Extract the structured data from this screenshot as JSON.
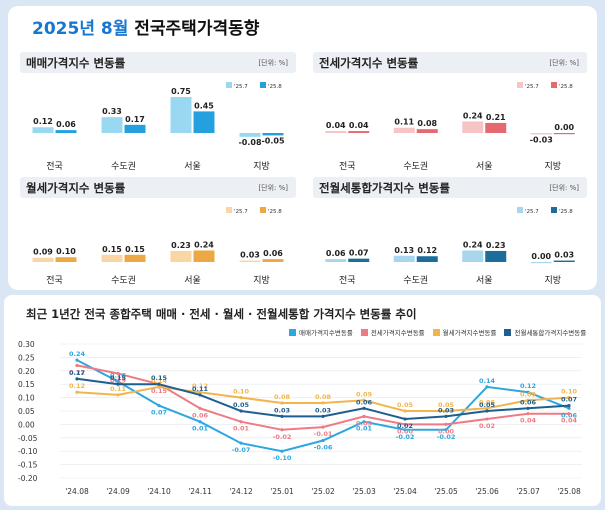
{
  "title": {
    "accent": "2025년 8월",
    "rest": " 전국주택가격동향"
  },
  "unit_label": "[단위: %]",
  "chart_data": [
    {
      "type": "bar",
      "title": "매매가격지수 변동률",
      "categories": [
        "전국",
        "수도권",
        "서울",
        "지방"
      ],
      "series": [
        {
          "name": "'25.7",
          "values": [
            0.12,
            0.33,
            0.75,
            -0.08
          ],
          "color": "#9ad8f2"
        },
        {
          "name": "'25.8",
          "values": [
            0.06,
            0.17,
            0.45,
            -0.05
          ],
          "color": "#23a0dd"
        }
      ],
      "ylim": [
        -0.1,
        0.8
      ]
    },
    {
      "type": "bar",
      "title": "전세가격지수 변동률",
      "categories": [
        "전국",
        "수도권",
        "서울",
        "지방"
      ],
      "series": [
        {
          "name": "'25.7",
          "values": [
            0.04,
            0.11,
            0.24,
            -0.03
          ],
          "color": "#f6c4c6"
        },
        {
          "name": "'25.8",
          "values": [
            0.04,
            0.08,
            0.21,
            0.0
          ],
          "color": "#e56a70"
        }
      ],
      "ylim": [
        -0.1,
        0.8
      ]
    },
    {
      "type": "bar",
      "title": "월세가격지수 변동률",
      "categories": [
        "전국",
        "수도권",
        "서울",
        "지방"
      ],
      "series": [
        {
          "name": "'25.7",
          "values": [
            0.09,
            0.15,
            0.23,
            0.03
          ],
          "color": "#f9d6a4"
        },
        {
          "name": "'25.8",
          "values": [
            0.1,
            0.15,
            0.24,
            0.06
          ],
          "color": "#eea843"
        }
      ],
      "ylim": [
        0,
        0.8
      ]
    },
    {
      "type": "bar",
      "title": "전월세통합가격지수 변동률",
      "categories": [
        "전국",
        "수도권",
        "서울",
        "지방"
      ],
      "series": [
        {
          "name": "'25.7",
          "values": [
            0.06,
            0.13,
            0.24,
            0.0
          ],
          "color": "#a8d6ec"
        },
        {
          "name": "'25.8",
          "values": [
            0.07,
            0.12,
            0.23,
            0.03
          ],
          "color": "#1d6d9c"
        }
      ],
      "ylim": [
        0,
        0.8
      ]
    },
    {
      "type": "line",
      "title": "최근 1년간 전국 종합주택 매매 · 전세 · 월세 · 전월세통합 가격지수 변동률 추이",
      "x": [
        "'24.08",
        "'24.09",
        "'24.10",
        "'24.11",
        "'24.12",
        "'25.01",
        "'25.02",
        "'25.03",
        "'25.04",
        "'25.05",
        "'25.06",
        "'25.07",
        "'25.08"
      ],
      "series": [
        {
          "name": "매매가격지수변동률",
          "color": "#2ea7df",
          "values": [
            0.24,
            0.16,
            0.07,
            0.01,
            -0.07,
            -0.1,
            -0.06,
            0.01,
            -0.02,
            -0.02,
            0.14,
            0.12,
            0.06
          ]
        },
        {
          "name": "전세가격지수변동률",
          "color": "#ee7b84",
          "values": [
            0.22,
            0.19,
            0.15,
            0.06,
            0.01,
            -0.02,
            -0.01,
            0.03,
            0.0,
            0.0,
            0.02,
            0.04,
            0.04
          ]
        },
        {
          "name": "월세가격지수변동률",
          "color": "#f1b54e",
          "values": [
            0.12,
            0.11,
            0.14,
            0.12,
            0.1,
            0.08,
            0.08,
            0.09,
            0.05,
            0.05,
            0.06,
            0.09,
            0.1
          ]
        },
        {
          "name": "전월세통합가격지수변동률",
          "color": "#1f5f8f",
          "values": [
            0.17,
            0.15,
            0.15,
            0.11,
            0.05,
            0.03,
            0.03,
            0.06,
            0.02,
            0.03,
            0.05,
            0.06,
            0.07
          ]
        }
      ],
      "yticks": [
        "0.30",
        "0.25",
        "0.20",
        "0.15",
        "0.10",
        "0.05",
        "0.00",
        "-0.05",
        "-0.10",
        "-0.15",
        "-0.20"
      ],
      "ylim": [
        -0.2,
        0.3
      ]
    }
  ]
}
